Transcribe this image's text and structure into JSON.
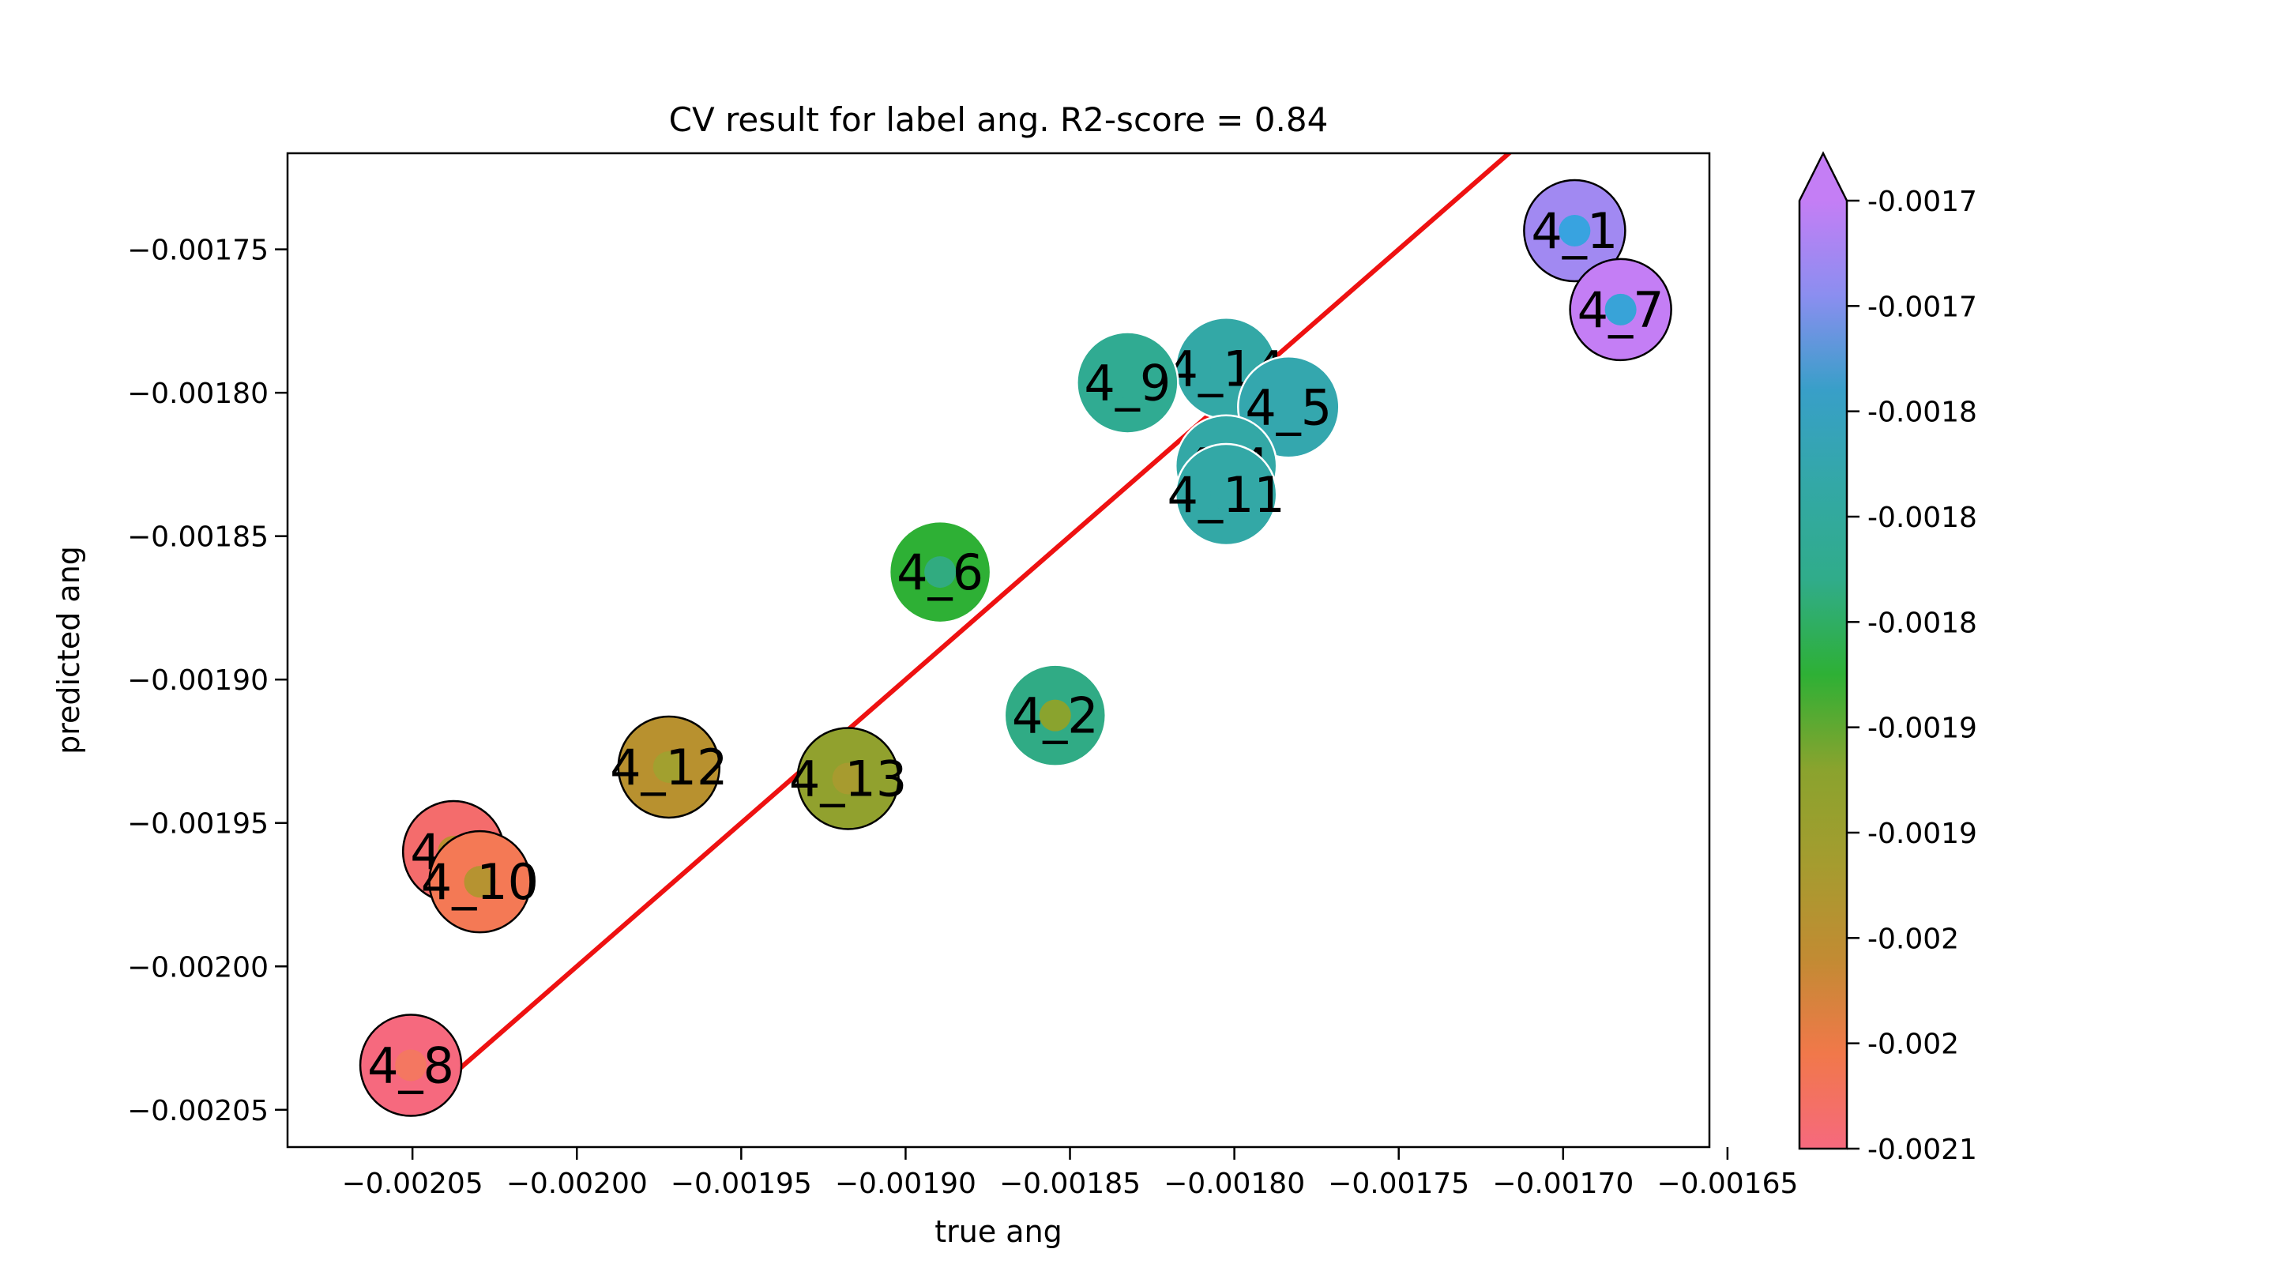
{
  "chart_data": {
    "type": "scatter",
    "title": "CV result for label ang. R2-score = 0.84",
    "xlabel": "true ang",
    "ylabel": "predicted ang",
    "xlim": [
      -0.002088,
      -0.0016555
    ],
    "ylim": [
      -0.002063,
      -0.0017165
    ],
    "x_ticks": [
      -0.00205,
      -0.002,
      -0.00195,
      -0.0019,
      -0.00185,
      -0.0018,
      -0.00175,
      -0.0017,
      -0.00165
    ],
    "x_tick_labels": [
      "−0.00205",
      "−0.00200",
      "−0.00195",
      "−0.00190",
      "−0.00185",
      "−0.00180",
      "−0.00175",
      "−0.00170",
      "−0.00165"
    ],
    "y_ticks": [
      -0.00175,
      -0.0018,
      -0.00185,
      -0.0019,
      -0.00195,
      -0.002,
      -0.00205
    ],
    "y_tick_labels": [
      "−0.00175",
      "−0.00180",
      "−0.00185",
      "−0.00190",
      "−0.00195",
      "−0.00200",
      "−0.00205"
    ],
    "grid": false,
    "identity_line": {
      "from": -0.00205,
      "to": -0.0016,
      "color": "#ee1111"
    },
    "colorbar": {
      "min": -0.0021,
      "max": -0.0017,
      "extend": "max",
      "tick_labels": [
        "-0.0017",
        "-0.0017",
        "-0.0018",
        "-0.0018",
        "-0.0018",
        "-0.0019",
        "-0.0019",
        "-0.002",
        "-0.002",
        "-0.0021"
      ],
      "colors": [
        "#f6697e",
        "#f1784a",
        "#c28b33",
        "#a59c2f",
        "#8aa32e",
        "#2eb035",
        "#30ac8a",
        "#33a8a6",
        "#389fc8",
        "#8b8ef0",
        "#c47ef5"
      ]
    },
    "points": [
      {
        "label": "4_1",
        "x": -0.0016965,
        "y": -0.0017435,
        "pred_color": "#a189f2",
        "true_color": "#38a3e0",
        "edge": "black"
      },
      {
        "label": "4_7",
        "x": -0.0016825,
        "y": -0.001771,
        "pred_color": "#c47ef5",
        "true_color": "#38a3d8",
        "edge": "black"
      },
      {
        "label": "4_14",
        "x": -0.0018025,
        "y": -0.0017915,
        "pred_color": "#33a8a6",
        "true_color": "#33a8a6",
        "edge": "white"
      },
      {
        "label": "4_9",
        "x": -0.0018325,
        "y": -0.0017965,
        "pred_color": "#30ab92",
        "true_color": "#30ab92",
        "edge": "white"
      },
      {
        "label": "4_5",
        "x": -0.0017835,
        "y": -0.001805,
        "pred_color": "#34a7ae",
        "true_color": "#34a7ae",
        "edge": "white"
      },
      {
        "label": "4_4",
        "x": -0.0018025,
        "y": -0.0018255,
        "pred_color": "#33a8a6",
        "true_color": "#33a8a6",
        "edge": "white"
      },
      {
        "label": "4_11",
        "x": -0.0018025,
        "y": -0.0018355,
        "pred_color": "#33a8a6",
        "true_color": "#33a8a6",
        "edge": "white"
      },
      {
        "label": "4_6",
        "x": -0.0018895,
        "y": -0.0018625,
        "pred_color": "#2eb035",
        "true_color": "#31ab80",
        "edge": "white"
      },
      {
        "label": "4_2",
        "x": -0.0018545,
        "y": -0.0019125,
        "pred_color": "#30ab85",
        "true_color": "#8aa32e",
        "edge": "white"
      },
      {
        "label": "4_12",
        "x": -0.001972,
        "y": -0.0019305,
        "pred_color": "#b8912f",
        "true_color": "#a2a02f",
        "edge": "black"
      },
      {
        "label": "4_13",
        "x": -0.0019175,
        "y": -0.0019345,
        "pred_color": "#91a12e",
        "true_color": "#a79b2f",
        "edge": "black"
      },
      {
        "label": "4_3",
        "x": -0.0020375,
        "y": -0.00196,
        "pred_color": "#f46c6c",
        "true_color": "#bb902f",
        "edge": "black"
      },
      {
        "label": "4_10",
        "x": -0.0020295,
        "y": -0.0019705,
        "pred_color": "#f47955",
        "true_color": "#b69331",
        "edge": "black"
      },
      {
        "label": "4_8",
        "x": -0.0020505,
        "y": -0.0020345,
        "pred_color": "#f6697e",
        "true_color": "#f47761",
        "edge": "black"
      }
    ]
  }
}
